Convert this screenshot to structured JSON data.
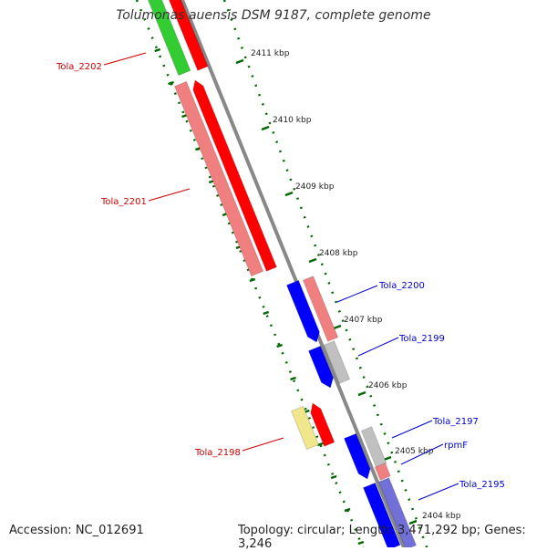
{
  "title": "Tolumonas auensis DSM 9187, complete genome",
  "footer": {
    "accession": "Accession: NC_012691",
    "summary": "Topology: circular; Length: 3,471,292 bp; Genes: 3,246"
  },
  "colors": {
    "forward_cds": "#ff0000",
    "forward_cds_light": "#f08080",
    "reverse_cds": "#0000ff",
    "reverse_cds_light": "#7070d8",
    "rna": "#c0c0c0",
    "pseudogene": "#f0e68c",
    "other_gene": "#33cc33",
    "label_forward": "#cc0000",
    "label_reverse": "#0000cc",
    "tick": "#006600",
    "backbone": "#888888"
  },
  "ticks": [
    {
      "label": "2411 kbp"
    },
    {
      "label": "2410 kbp"
    },
    {
      "label": "2409 kbp"
    },
    {
      "label": "2408 kbp"
    },
    {
      "label": "2407 kbp"
    },
    {
      "label": "2406 kbp"
    },
    {
      "label": "2405 kbp"
    },
    {
      "label": "2404 kbp"
    }
  ],
  "gene_labels": [
    {
      "text": "Tola_2202",
      "strand": "forward"
    },
    {
      "text": "Tola_2201",
      "strand": "forward"
    },
    {
      "text": "Tola_2200",
      "strand": "reverse"
    },
    {
      "text": "Tola_2199",
      "strand": "reverse"
    },
    {
      "text": "Tola_2198",
      "strand": "forward"
    },
    {
      "text": "Tola_2197",
      "strand": "reverse"
    },
    {
      "text": "rpmF",
      "strand": "reverse"
    },
    {
      "text": "Tola_2195",
      "strand": "reverse"
    }
  ]
}
